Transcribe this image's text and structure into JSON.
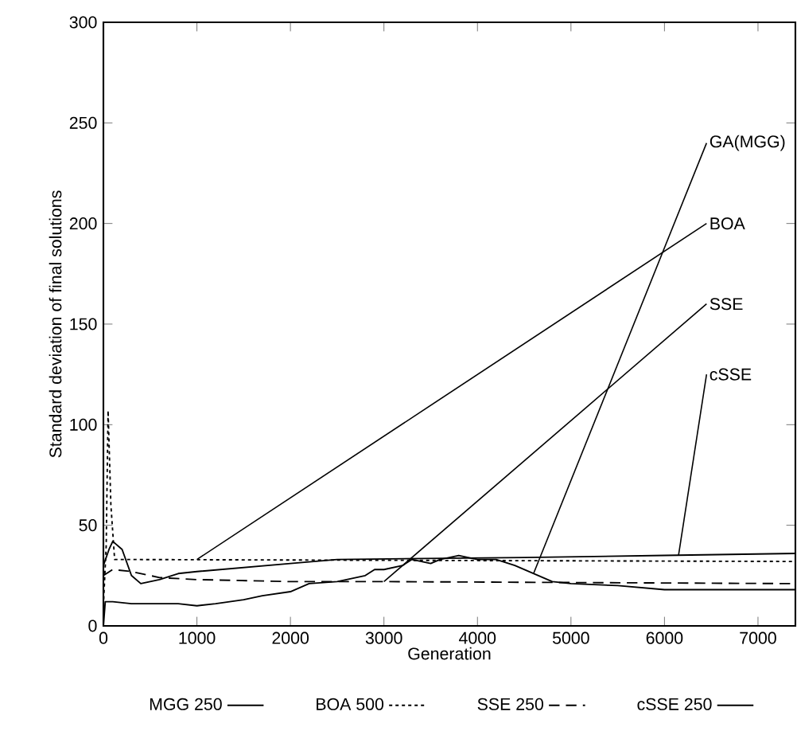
{
  "chart_data": {
    "type": "line",
    "xlabel": "Generation",
    "ylabel": "Standard deviation of final solutions",
    "xlim": [
      0,
      7400
    ],
    "ylim": [
      0,
      300
    ],
    "xticks": [
      0,
      1000,
      2000,
      3000,
      4000,
      5000,
      6000,
      7000
    ],
    "yticks": [
      0,
      50,
      100,
      150,
      200,
      250,
      300
    ],
    "grid": false,
    "legend": "bottom",
    "marker": "none",
    "series": [
      {
        "name": "MGG 250",
        "color": "#000000",
        "line_style": "solid",
        "x": [
          0,
          20,
          100,
          300,
          500,
          800,
          1000,
          1200,
          1500,
          1700,
          2000,
          2200,
          2500,
          2800,
          2900,
          3000,
          3200,
          3300,
          3500,
          3600,
          3800,
          4000,
          4200,
          4400,
          4600,
          4800,
          5000,
          5500,
          6000,
          6500,
          7400
        ],
        "values": [
          0,
          12,
          12,
          11,
          11,
          11,
          10,
          11,
          13,
          15,
          17,
          21,
          22,
          25,
          28,
          28,
          30,
          33,
          31,
          33,
          35,
          33,
          33,
          30,
          26,
          22,
          21,
          20,
          18,
          18,
          18
        ]
      },
      {
        "name": "BOA 500",
        "color": "#000000",
        "line_style": "dotted",
        "x": [
          0,
          30,
          50,
          80,
          120,
          7400
        ],
        "values": [
          10,
          40,
          107,
          60,
          33,
          32
        ]
      },
      {
        "name": "SSE 250",
        "color": "#000000",
        "line_style": "dashed",
        "x": [
          0,
          100,
          300,
          600,
          1000,
          2000,
          3000,
          7400
        ],
        "values": [
          25,
          28,
          27,
          24,
          23,
          22,
          22,
          21
        ]
      },
      {
        "name": "cSSE 250",
        "color": "#000000",
        "line_style": "solid",
        "x": [
          0,
          60,
          100,
          200,
          300,
          400,
          600,
          800,
          1000,
          2000,
          2500,
          4500,
          6000,
          7400
        ],
        "values": [
          30,
          38,
          42,
          38,
          25,
          21,
          23,
          26,
          27,
          31,
          33,
          34,
          35,
          36
        ]
      }
    ],
    "annotations": [
      {
        "text": "GA(MGG)",
        "x": 4600,
        "y": 26
      },
      {
        "text": "BOA",
        "x": 1000,
        "y": 33
      },
      {
        "text": "SSE",
        "x": 3000,
        "y": 22
      },
      {
        "text": "cSSE",
        "x": 6150,
        "y": 35
      }
    ]
  }
}
